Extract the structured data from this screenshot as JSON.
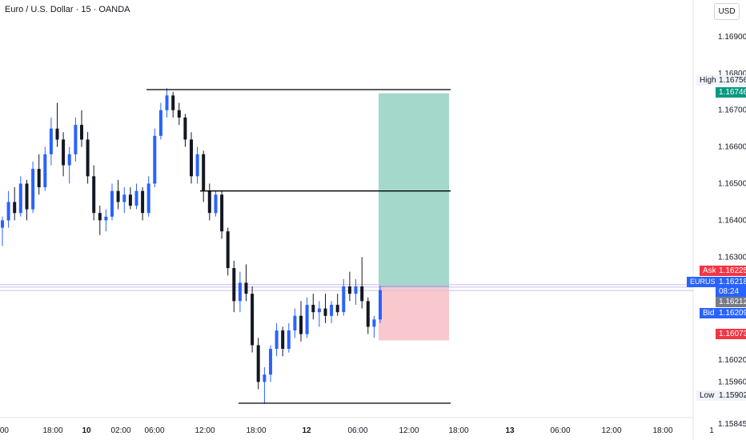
{
  "header": {
    "title": "Euro / U.S. Dollar · 15 · OANDA",
    "currency_button": "USD"
  },
  "price_axis": {
    "ticks": [
      "1.16900",
      "1.16800",
      "1.16700",
      "1.16600",
      "1.16500",
      "1.16400",
      "1.16300",
      "1.16020",
      "1.15960",
      "1.15845"
    ],
    "tick_values": [
      1.169,
      1.168,
      1.167,
      1.166,
      1.165,
      1.164,
      1.163,
      1.1602,
      1.1596,
      1.15845
    ]
  },
  "time_axis": {
    "labels": [
      {
        "text": ":00",
        "bold": false
      },
      {
        "text": "18:00",
        "bold": false
      },
      {
        "text": "10",
        "bold": true
      },
      {
        "text": "02:00",
        "bold": false
      },
      {
        "text": "06:00",
        "bold": false
      },
      {
        "text": "12:00",
        "bold": false
      },
      {
        "text": "18:00",
        "bold": false
      },
      {
        "text": "12",
        "bold": true
      },
      {
        "text": "06:00",
        "bold": false
      },
      {
        "text": "12:00",
        "bold": false
      },
      {
        "text": "18:00",
        "bold": false
      },
      {
        "text": "13",
        "bold": true
      },
      {
        "text": "06:00",
        "bold": false
      },
      {
        "text": "12:00",
        "bold": false
      },
      {
        "text": "18:00",
        "bold": false
      },
      {
        "text": "1",
        "bold": false
      }
    ]
  },
  "price_labels": {
    "high": {
      "tag": "High",
      "value": "1.16756"
    },
    "target": {
      "value": "1.16746"
    },
    "ask": {
      "tag": "Ask",
      "value": "1.16225"
    },
    "symbol": {
      "tag": "EURUSD",
      "value": "1.16218",
      "countdown": "08:24"
    },
    "mid": {
      "value": "1.16212"
    },
    "bid": {
      "tag": "Bid",
      "value": "1.16209"
    },
    "stop": {
      "value": "1.16073"
    },
    "low": {
      "tag": "Low",
      "value": "1.15902"
    }
  },
  "colors": {
    "bull": "#2962ff",
    "bear": "#131722",
    "profit": "#9ed6c7",
    "loss": "#f9c4cb",
    "ask": "#f23645",
    "bid": "#2962ff",
    "target": "#089981",
    "stop": "#f23645"
  },
  "chart_data": {
    "type": "candlestick",
    "symbol": "EURUSD",
    "interval": "15",
    "broker": "OANDA",
    "horizontal_levels": [
      1.16756,
      1.1648,
      1.15902
    ],
    "position": {
      "entry": 1.1622,
      "target": 1.16746,
      "stop": 1.16073
    },
    "current_price": 1.16218,
    "candles": [
      [
        1.1638,
        1.1641,
        1.1633,
        1.164
      ],
      [
        1.164,
        1.1648,
        1.1638,
        1.1645
      ],
      [
        1.1645,
        1.1649,
        1.164,
        1.1642
      ],
      [
        1.1642,
        1.1652,
        1.1641,
        1.165
      ],
      [
        1.165,
        1.1651,
        1.164,
        1.1643
      ],
      [
        1.1643,
        1.1656,
        1.1642,
        1.1654
      ],
      [
        1.1654,
        1.1658,
        1.1647,
        1.1649
      ],
      [
        1.1649,
        1.166,
        1.1648,
        1.1658
      ],
      [
        1.1658,
        1.1668,
        1.1655,
        1.1665
      ],
      [
        1.1665,
        1.1672,
        1.166,
        1.1662
      ],
      [
        1.1662,
        1.1664,
        1.1652,
        1.1655
      ],
      [
        1.1655,
        1.166,
        1.165,
        1.1658
      ],
      [
        1.1658,
        1.1668,
        1.1656,
        1.1666
      ],
      [
        1.1666,
        1.167,
        1.166,
        1.1662
      ],
      [
        1.1662,
        1.1664,
        1.165,
        1.1652
      ],
      [
        1.1652,
        1.1655,
        1.164,
        1.1642
      ],
      [
        1.1642,
        1.1644,
        1.1636,
        1.164
      ],
      [
        1.164,
        1.1643,
        1.1637,
        1.1641
      ],
      [
        1.1641,
        1.165,
        1.164,
        1.1648
      ],
      [
        1.1648,
        1.1651,
        1.1643,
        1.1645
      ],
      [
        1.1645,
        1.1649,
        1.1642,
        1.1647
      ],
      [
        1.1647,
        1.1649,
        1.1643,
        1.1644
      ],
      [
        1.1644,
        1.165,
        1.1643,
        1.1648
      ],
      [
        1.1648,
        1.1649,
        1.164,
        1.1642
      ],
      [
        1.1642,
        1.1652,
        1.1641,
        1.165
      ],
      [
        1.165,
        1.1665,
        1.1649,
        1.1663
      ],
      [
        1.1663,
        1.1672,
        1.1662,
        1.167
      ],
      [
        1.167,
        1.1676,
        1.1668,
        1.1674
      ],
      [
        1.1674,
        1.1675,
        1.1668,
        1.167
      ],
      [
        1.167,
        1.1672,
        1.1666,
        1.1668
      ],
      [
        1.1668,
        1.1669,
        1.166,
        1.1662
      ],
      [
        1.1662,
        1.1664,
        1.165,
        1.1652
      ],
      [
        1.1652,
        1.166,
        1.165,
        1.1658
      ],
      [
        1.1658,
        1.1659,
        1.1645,
        1.1648
      ],
      [
        1.1648,
        1.165,
        1.164,
        1.1642
      ],
      [
        1.1642,
        1.1648,
        1.1641,
        1.1647
      ],
      [
        1.1647,
        1.1648,
        1.1635,
        1.1637
      ],
      [
        1.1637,
        1.1638,
        1.1625,
        1.1627
      ],
      [
        1.1627,
        1.1629,
        1.1615,
        1.1618
      ],
      [
        1.1618,
        1.1626,
        1.1615,
        1.1623
      ],
      [
        1.1623,
        1.1628,
        1.1618,
        1.162
      ],
      [
        1.162,
        1.1622,
        1.1604,
        1.1606
      ],
      [
        1.1606,
        1.1608,
        1.1594,
        1.1596
      ],
      [
        1.1596,
        1.16,
        1.159,
        1.1598
      ],
      [
        1.1598,
        1.1606,
        1.1596,
        1.1605
      ],
      [
        1.1605,
        1.1612,
        1.1603,
        1.161
      ],
      [
        1.161,
        1.1611,
        1.1603,
        1.1605
      ],
      [
        1.1605,
        1.1612,
        1.1604,
        1.161
      ],
      [
        1.161,
        1.1616,
        1.1608,
        1.1614
      ],
      [
        1.1614,
        1.1618,
        1.1607,
        1.1609
      ],
      [
        1.1609,
        1.1619,
        1.1608,
        1.1617
      ],
      [
        1.1617,
        1.162,
        1.1613,
        1.1615
      ],
      [
        1.1615,
        1.1618,
        1.1611,
        1.1616
      ],
      [
        1.1616,
        1.162,
        1.1612,
        1.1614
      ],
      [
        1.1614,
        1.1618,
        1.1612,
        1.1617
      ],
      [
        1.1617,
        1.162,
        1.1614,
        1.1615
      ],
      [
        1.1615,
        1.1624,
        1.1614,
        1.1622
      ],
      [
        1.1622,
        1.1626,
        1.1618,
        1.162
      ],
      [
        1.162,
        1.1624,
        1.1617,
        1.1622
      ],
      [
        1.1622,
        1.163,
        1.1616,
        1.1618
      ],
      [
        1.1618,
        1.1619,
        1.1609,
        1.1611
      ],
      [
        1.1611,
        1.1614,
        1.1608,
        1.1613
      ],
      [
        1.1613,
        1.1622,
        1.1612,
        1.1621
      ]
    ]
  }
}
